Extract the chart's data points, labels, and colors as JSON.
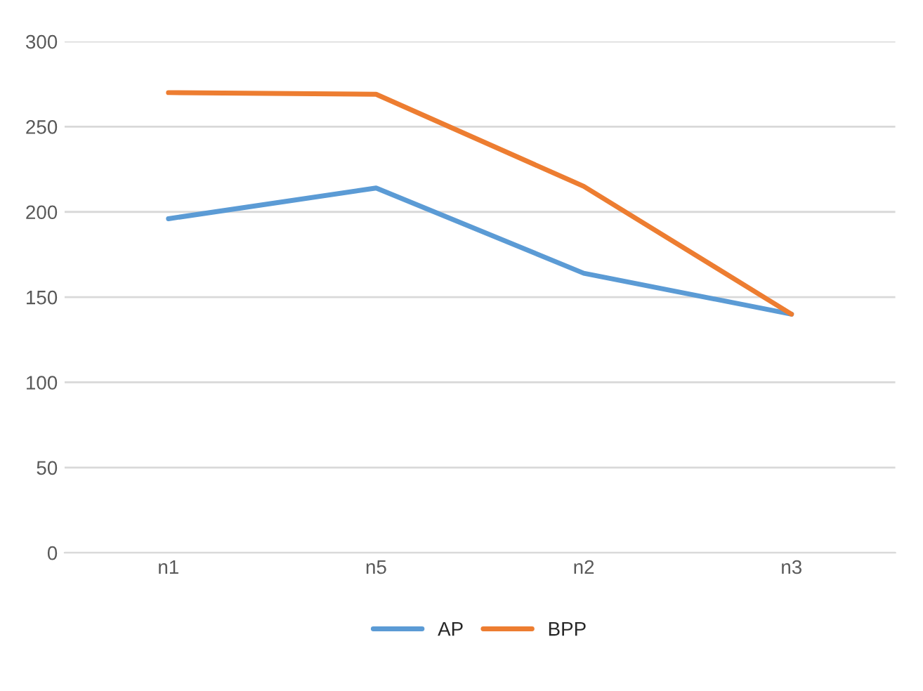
{
  "chart_data": {
    "type": "line",
    "categories": [
      "n1",
      "n5",
      "n2",
      "n3"
    ],
    "series": [
      {
        "name": "AP",
        "color": "#5b9bd5",
        "values": [
          196,
          214,
          164,
          140
        ]
      },
      {
        "name": "BPP",
        "color": "#ed7d31",
        "values": [
          270,
          269,
          215,
          140
        ]
      }
    ],
    "ylim": [
      0,
      300
    ],
    "yticks": [
      0,
      50,
      100,
      150,
      200,
      250,
      300
    ],
    "grid": "y",
    "legend": "bottom",
    "marker": "none",
    "line_style": "solid"
  }
}
